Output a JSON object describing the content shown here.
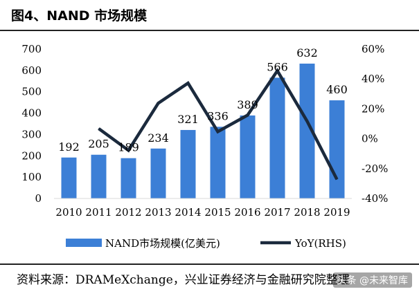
{
  "title": "图4、NAND 市场规模",
  "source": "资料来源：DRAMeXchange，兴业证券经济与金融研究院整理",
  "watermark": "头条 @未来智库",
  "colors": {
    "bar": "#3c7fd6",
    "line": "#1b2a3d"
  },
  "chart_data": {
    "type": "bar",
    "categories": [
      "2010",
      "2011",
      "2012",
      "2013",
      "2014",
      "2015",
      "2016",
      "2017",
      "2018",
      "2019"
    ],
    "series": [
      {
        "name": "NAND市场规模(亿美元)",
        "type": "bar",
        "axis": "left",
        "values": [
          192,
          205,
          189,
          234,
          321,
          336,
          389,
          566,
          632,
          460
        ]
      },
      {
        "name": "YoY(RHS)",
        "type": "line",
        "axis": "right",
        "values": [
          null,
          6.8,
          -7.8,
          23.8,
          37.2,
          4.7,
          15.8,
          45.5,
          11.7,
          -27.2
        ]
      }
    ],
    "y_left": {
      "min": 0,
      "max": 700,
      "step": 100,
      "ticks": [
        "0",
        "100",
        "200",
        "300",
        "400",
        "500",
        "600",
        "700"
      ]
    },
    "y_right": {
      "min": -40,
      "max": 60,
      "step": 20,
      "ticks": [
        "-40%",
        "-20%",
        "0%",
        "20%",
        "40%",
        "60%"
      ]
    },
    "data_labels": [
      "192",
      "205",
      "189",
      "234",
      "321",
      "336",
      "389",
      "566",
      "632",
      "460"
    ],
    "legend_position": "bottom"
  }
}
